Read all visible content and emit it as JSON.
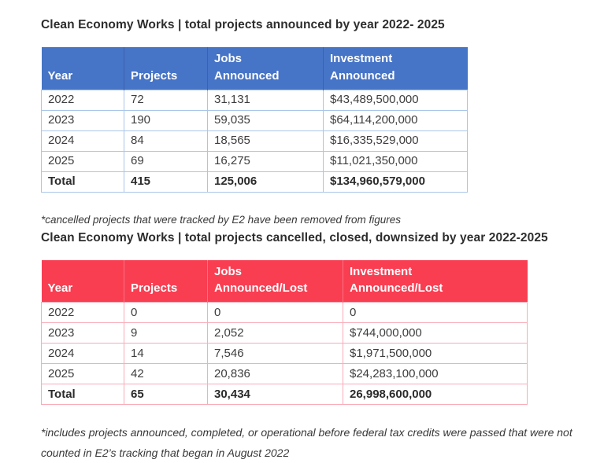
{
  "table1": {
    "title": "Clean Economy Works | total projects announced by year 2022- 2025",
    "header_bg": "#4674C7",
    "header_divider": "#3a63ad",
    "border_color": "#A9C6E9",
    "columns": [
      "Year",
      "Projects",
      "Jobs\nAnnounced",
      "Investment\nAnnounced"
    ],
    "rows": [
      [
        "2022",
        "72",
        "31,131",
        "$43,489,500,000"
      ],
      [
        "2023",
        "190",
        "59,035",
        "$64,114,200,000"
      ],
      [
        "2024",
        "84",
        "18,565",
        "$16,335,529,000"
      ],
      [
        "2025",
        "69",
        "16,275",
        "$11,021,350,000"
      ]
    ],
    "total": [
      "Total",
      "415",
      "125,006",
      "$134,960,579,000"
    ]
  },
  "notes": {
    "cancelled": "*cancelled projects that were tracked by E2 have been removed from figures",
    "includes": "*includes projects announced, completed, or operational before federal tax credits were passed that were not counted in E2’s tracking that began in August 2022"
  },
  "table2": {
    "title": "Clean Economy Works | total projects cancelled, closed, downsized by year 2022-2025",
    "header_bg": "#F93E52",
    "header_divider": "#fb7184",
    "border_color": "#F9ACB8",
    "columns": [
      "Year",
      "Projects",
      "Jobs\nAnnounced/Lost",
      "Investment\nAnnounced/Lost"
    ],
    "rows": [
      [
        "2022",
        "0",
        "0",
        "0"
      ],
      [
        "2023",
        "9",
        "2,052",
        "$744,000,000"
      ],
      [
        "2024",
        "14",
        "7,546",
        "$1,971,500,000"
      ],
      [
        "2025",
        "42",
        "20,836",
        "$24,283,100,000"
      ]
    ],
    "total": [
      "Total",
      "65",
      "30,434",
      "26,998,600,000"
    ]
  }
}
